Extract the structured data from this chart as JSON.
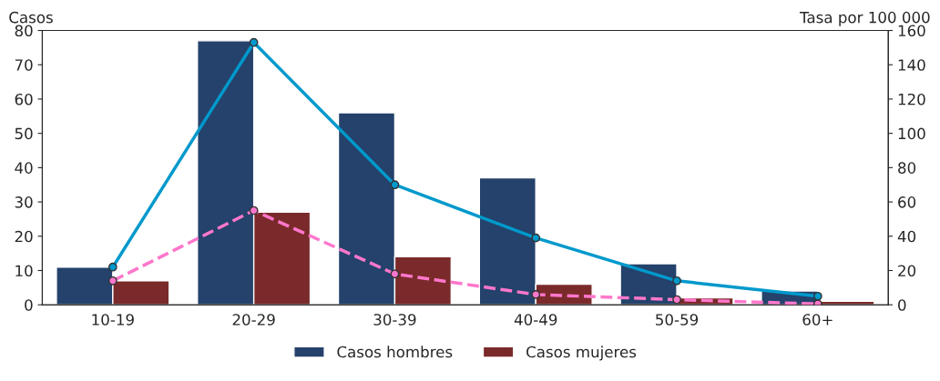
{
  "chart_data": {
    "type": "bar",
    "ylabel": "Casos",
    "y2label": "Tasa por 100 000",
    "categories": [
      "10-19",
      "20-29",
      "30-39",
      "40-49",
      "50-59",
      "60+"
    ],
    "series": [
      {
        "name": "Casos hombres",
        "color": "#24426b",
        "values": [
          11,
          77,
          56,
          37,
          12,
          4
        ]
      },
      {
        "name": "Casos mujeres",
        "color": "#7a2a2a",
        "values": [
          7,
          27,
          14,
          6,
          2,
          1
        ]
      },
      {
        "type": "line",
        "axis": "y2",
        "color": "#0099cc",
        "line_style": "solid",
        "marker": "circle",
        "values": [
          22,
          153,
          70,
          39,
          14,
          5
        ]
      },
      {
        "type": "line",
        "axis": "y2",
        "color": "#ff77cc",
        "line_style": "dashed",
        "marker": "circle",
        "values": [
          14,
          55,
          18,
          6,
          3,
          0.5
        ]
      }
    ],
    "ylim": [
      0,
      80
    ],
    "yticks": [
      0,
      10,
      20,
      30,
      40,
      50,
      60,
      70,
      80
    ],
    "y2lim": [
      0,
      160
    ],
    "y2ticks": [
      0,
      20,
      40,
      60,
      80,
      100,
      120,
      140,
      160
    ],
    "grid": false,
    "legend": "bottom"
  }
}
